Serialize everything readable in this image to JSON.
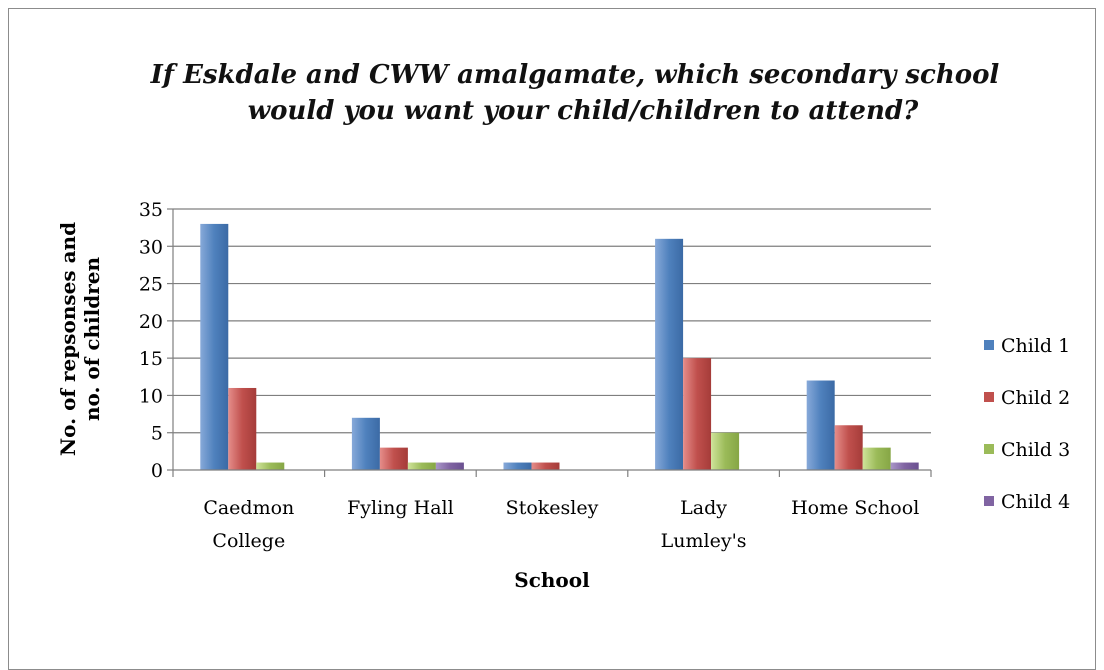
{
  "chart_data": {
    "type": "bar",
    "title_lines": [
      "If Eskdale and CWW amalgamate, which secondary school",
      "would you want your child/children to  attend?"
    ],
    "xlabel": "School",
    "ylabel_lines": [
      "No. of repsonses and",
      "no. of children"
    ],
    "categories": [
      [
        "Caedmon",
        "College"
      ],
      [
        "Fyling Hall"
      ],
      [
        "Stokesley"
      ],
      [
        "Lady",
        "Lumley's"
      ],
      [
        "Home School"
      ]
    ],
    "series": [
      {
        "name": "Child 1",
        "color": "#4f81bd",
        "values": [
          33,
          7,
          1,
          31,
          12
        ]
      },
      {
        "name": "Child 2",
        "color": "#c0504d",
        "values": [
          11,
          3,
          1,
          15,
          6
        ]
      },
      {
        "name": "Child 3",
        "color": "#9bbb59",
        "values": [
          1,
          1,
          0,
          5,
          3
        ]
      },
      {
        "name": "Child 4",
        "color": "#8064a2",
        "values": [
          0,
          1,
          0,
          0,
          1
        ]
      }
    ],
    "ylim": [
      0,
      35
    ],
    "yticks": [
      0,
      5,
      10,
      15,
      20,
      25,
      30,
      35
    ],
    "grid": true,
    "legend_position": "right"
  }
}
